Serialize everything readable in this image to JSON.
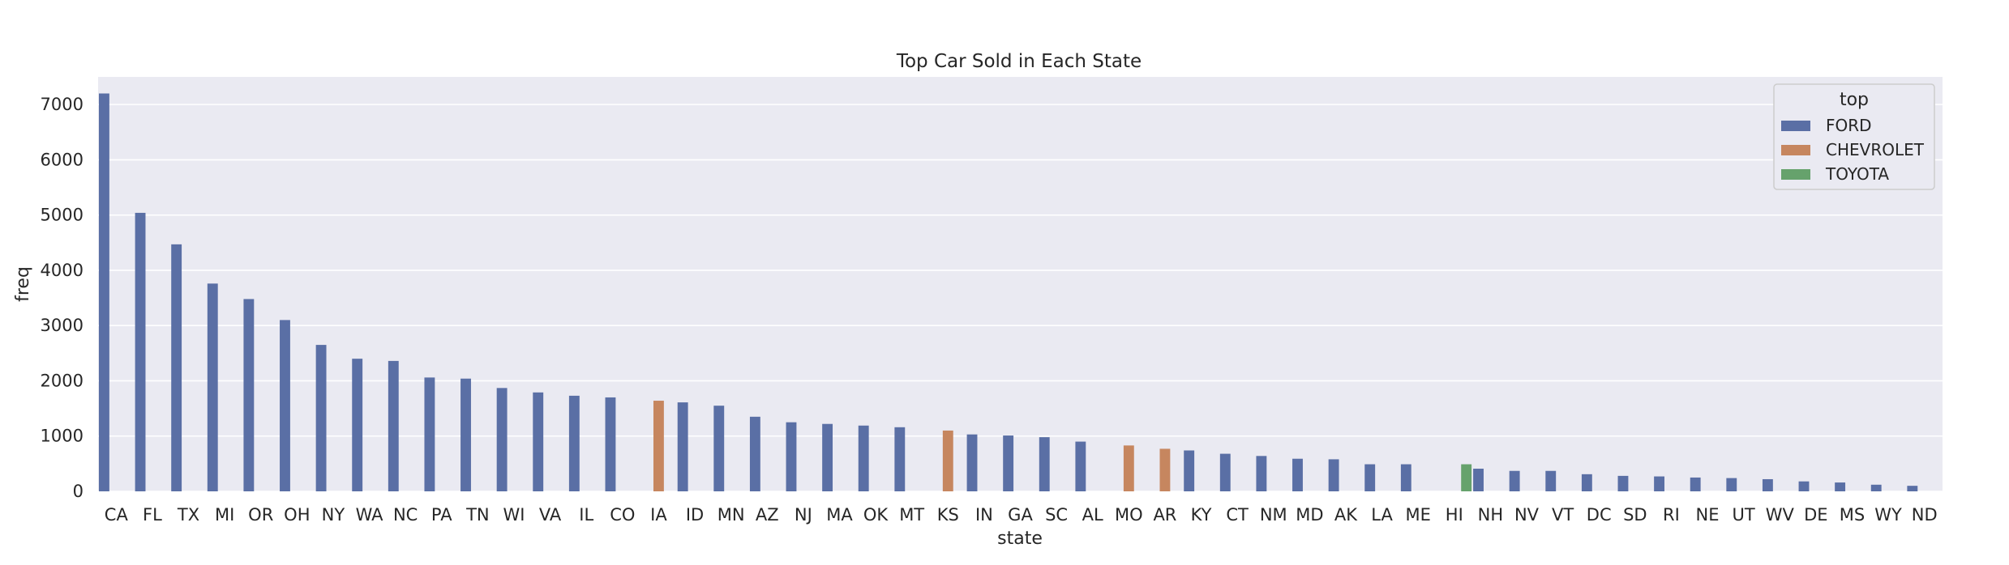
{
  "chart_data": {
    "type": "bar",
    "title": "Top Car Sold in Each State",
    "xlabel": "state",
    "ylabel": "freq",
    "ylim": [
      0,
      7500
    ],
    "yticks": [
      0,
      1000,
      2000,
      3000,
      4000,
      5000,
      6000,
      7000
    ],
    "grid": true,
    "legend": {
      "title": "top",
      "placement": "top-right",
      "entries": [
        "FORD",
        "CHEVROLET",
        "TOYOTA"
      ]
    },
    "colors": {
      "FORD": "#5a6fa5",
      "CHEVROLET": "#c6865f",
      "TOYOTA": "#66a26c",
      "background": "#eaeaf2",
      "grid": "#ffffff"
    },
    "categories": [
      "CA",
      "FL",
      "TX",
      "MI",
      "OR",
      "OH",
      "NY",
      "WA",
      "NC",
      "PA",
      "TN",
      "WI",
      "VA",
      "IL",
      "CO",
      "IA",
      "ID",
      "MN",
      "AZ",
      "NJ",
      "MA",
      "OK",
      "MT",
      "KS",
      "IN",
      "GA",
      "SC",
      "AL",
      "MO",
      "AR",
      "KY",
      "CT",
      "NM",
      "MD",
      "AK",
      "LA",
      "ME",
      "HI",
      "NH",
      "NV",
      "VT",
      "DC",
      "SD",
      "RI",
      "NE",
      "UT",
      "WV",
      "DE",
      "MS",
      "WY",
      "ND"
    ],
    "top": [
      "FORD",
      "FORD",
      "FORD",
      "FORD",
      "FORD",
      "FORD",
      "FORD",
      "FORD",
      "FORD",
      "FORD",
      "FORD",
      "FORD",
      "FORD",
      "FORD",
      "FORD",
      "CHEVROLET",
      "FORD",
      "FORD",
      "FORD",
      "FORD",
      "FORD",
      "FORD",
      "FORD",
      "CHEVROLET",
      "FORD",
      "FORD",
      "FORD",
      "FORD",
      "CHEVROLET",
      "CHEVROLET",
      "FORD",
      "FORD",
      "FORD",
      "FORD",
      "FORD",
      "FORD",
      "FORD",
      "TOYOTA",
      "FORD",
      "FORD",
      "FORD",
      "FORD",
      "FORD",
      "FORD",
      "FORD",
      "FORD",
      "FORD",
      "FORD",
      "FORD",
      "FORD",
      "FORD"
    ],
    "values": [
      7200,
      5040,
      4470,
      3760,
      3480,
      3100,
      2650,
      2400,
      2360,
      2060,
      2040,
      1870,
      1790,
      1730,
      1700,
      1640,
      1610,
      1550,
      1350,
      1250,
      1220,
      1190,
      1160,
      1100,
      1030,
      1010,
      980,
      900,
      830,
      770,
      740,
      680,
      640,
      590,
      580,
      490,
      490,
      490,
      410,
      370,
      370,
      310,
      280,
      270,
      250,
      240,
      220,
      180,
      160,
      120,
      100
    ]
  }
}
